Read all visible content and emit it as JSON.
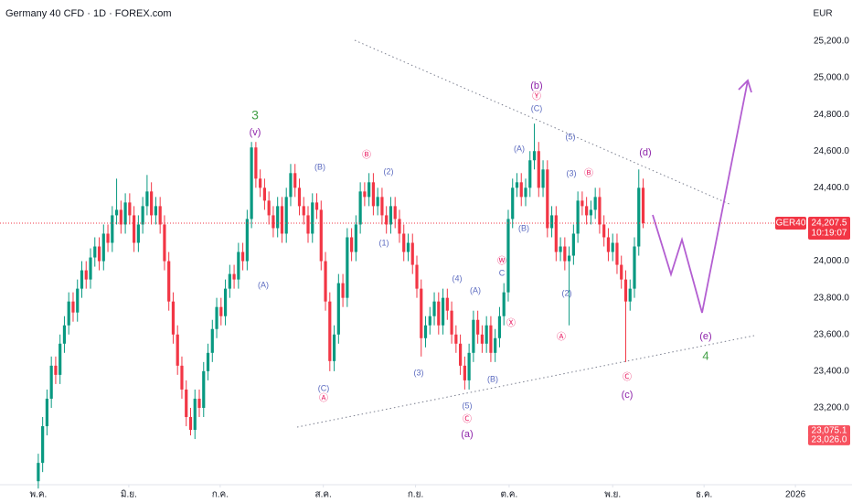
{
  "chart_data": {
    "type": "candlestick",
    "title": "Germany 40 CFD · 1D · FOREX.com",
    "currency": "EUR",
    "symbol": "GER40",
    "countdown": "10:19:07",
    "up_color": "#089981",
    "down_color": "#f23645",
    "xlim": [
      -8.8,
      187
    ],
    "ylim": [
      22781,
      25424
    ],
    "grid": false,
    "xticks": [
      {
        "value": 0,
        "label": "พ.ค."
      },
      {
        "value": 20.8,
        "label": "มิ.ย."
      },
      {
        "value": 41.8,
        "label": "ก.ค."
      },
      {
        "value": 65.5,
        "label": "ส.ค."
      },
      {
        "value": 86.7,
        "label": "ก.ย."
      },
      {
        "value": 108.2,
        "label": "ต.ค."
      },
      {
        "value": 132,
        "label": "พ.ย."
      },
      {
        "value": 153,
        "label": "ธ.ค."
      },
      {
        "value": 174,
        "label": "2026"
      }
    ],
    "yticks": [
      {
        "value": 23200,
        "label": "23,200.0"
      },
      {
        "value": 23400,
        "label": "23,400.0"
      },
      {
        "value": 23600,
        "label": "23,600.0"
      },
      {
        "value": 23800,
        "label": "23,800.0"
      },
      {
        "value": 24000,
        "label": "24,000.0"
      },
      {
        "value": 24200,
        "label": "24,200.0"
      },
      {
        "value": 24400,
        "label": "24,400.0"
      },
      {
        "value": 24600,
        "label": "24,600.0"
      },
      {
        "value": 24800,
        "label": "24,800.0"
      },
      {
        "value": 25000,
        "label": "25,000.0"
      },
      {
        "value": 25200,
        "label": "25,200.0"
      }
    ],
    "last_price": {
      "value": 24207.5,
      "label": "24,207.5"
    },
    "price_marks": [
      {
        "value": 23075.1,
        "label": "23,075.1"
      },
      {
        "value": 23026.0,
        "label": "23,026.0"
      }
    ],
    "open": [
      22800,
      22900,
      23100,
      23250,
      23430,
      23380,
      23550,
      23650,
      23780,
      23720,
      23850,
      23950,
      23900,
      24020,
      24080,
      24000,
      24150,
      24100,
      24250,
      24280,
      24200,
      24320,
      24250,
      24100,
      24200,
      24300,
      24380,
      24250,
      24300,
      24200,
      24000,
      23780,
      23600,
      23430,
      23300,
      23150,
      23080,
      23250,
      23200,
      23400,
      23500,
      23630,
      23750,
      23700,
      23850,
      23930,
      23900,
      24050,
      24000,
      24230,
      24620,
      24450,
      24400,
      24330,
      24250,
      24180,
      24300,
      24150,
      24350,
      24480,
      24400,
      24300,
      24250,
      24150,
      24320,
      24280,
      24000,
      23780,
      23455,
      23600,
      23880,
      23800,
      24130,
      24050,
      24200,
      24380,
      24350,
      24430,
      24300,
      24350,
      24250,
      24200,
      24300,
      24230,
      24150,
      24050,
      24100,
      23980,
      23850,
      23580,
      23650,
      23700,
      23780,
      23650,
      23800,
      23730,
      23600,
      23550,
      23430,
      23350,
      23500,
      23680,
      23600,
      23550,
      23650,
      23500,
      23580,
      23700,
      23830,
      24230,
      24400,
      24430,
      24350,
      24400,
      24550,
      24600,
      24400,
      24500,
      24180,
      24250,
      24050,
      24080,
      24000,
      24030,
      24150,
      24330,
      24300,
      24250,
      24280,
      24350,
      24200,
      24130,
      24050,
      24100,
      23980,
      23900,
      23780,
      23850,
      24080,
      24400
    ],
    "high": [
      22950,
      23150,
      23300,
      23480,
      23480,
      23600,
      23700,
      23830,
      23830,
      23900,
      24000,
      24000,
      24070,
      24130,
      24130,
      24200,
      24200,
      24300,
      24450,
      24330,
      24370,
      24370,
      24300,
      24250,
      24350,
      24470,
      24430,
      24350,
      24350,
      24250,
      24050,
      23830,
      23650,
      23480,
      23350,
      23200,
      23300,
      23300,
      23450,
      23550,
      23680,
      23800,
      23800,
      23900,
      23980,
      23980,
      24100,
      24100,
      24280,
      24650,
      24650,
      24500,
      24450,
      24380,
      24300,
      24350,
      24350,
      24400,
      24530,
      24530,
      24450,
      24350,
      24300,
      24370,
      24370,
      24330,
      24050,
      23830,
      23650,
      23930,
      23930,
      24180,
      24180,
      24250,
      24430,
      24430,
      24480,
      24480,
      24400,
      24400,
      24300,
      24350,
      24350,
      24280,
      24200,
      24150,
      24150,
      24030,
      23900,
      23700,
      23750,
      23830,
      23830,
      23850,
      23850,
      23780,
      23650,
      23600,
      23480,
      23550,
      23730,
      23730,
      23650,
      23700,
      23700,
      23630,
      23750,
      23880,
      24280,
      24450,
      24480,
      24480,
      24450,
      24600,
      24750,
      24650,
      24550,
      24550,
      24300,
      24300,
      24130,
      24130,
      24080,
      24200,
      24380,
      24380,
      24350,
      24330,
      24400,
      24400,
      24250,
      24180,
      24150,
      24150,
      24030,
      23950,
      23900,
      24130,
      24500,
      24450
    ],
    "low": [
      22760,
      22850,
      23050,
      23200,
      23330,
      23330,
      23500,
      23600,
      23670,
      23670,
      23800,
      23850,
      23850,
      23970,
      23950,
      23950,
      24050,
      24050,
      24200,
      24150,
      24150,
      24200,
      24050,
      24050,
      24150,
      24250,
      24200,
      24200,
      24150,
      23950,
      23730,
      23550,
      23380,
      23250,
      23100,
      23050,
      23030,
      23150,
      23150,
      23350,
      23450,
      23580,
      23650,
      23650,
      23800,
      23850,
      23850,
      23950,
      23950,
      24180,
      24400,
      24350,
      24280,
      24200,
      24130,
      24130,
      24100,
      24100,
      24300,
      24350,
      24250,
      24200,
      24100,
      24100,
      24230,
      23950,
      23730,
      23400,
      23400,
      23550,
      23750,
      23750,
      24000,
      24000,
      24150,
      24300,
      24300,
      24250,
      24250,
      24200,
      24150,
      24150,
      24180,
      24100,
      24000,
      24000,
      23930,
      23800,
      23480,
      23530,
      23600,
      23650,
      23600,
      23600,
      23680,
      23550,
      23500,
      23380,
      23300,
      23300,
      23450,
      23550,
      23500,
      23500,
      23450,
      23450,
      23530,
      23650,
      23780,
      24180,
      24350,
      24300,
      24300,
      24350,
      24500,
      24350,
      24350,
      24130,
      24130,
      24000,
      24000,
      23950,
      23650,
      23980,
      24100,
      24250,
      24200,
      24200,
      24230,
      24150,
      24080,
      24000,
      24000,
      23930,
      23850,
      23450,
      23730,
      23800,
      24030,
      24180
    ],
    "close": [
      22900,
      23100,
      23250,
      23430,
      23380,
      23550,
      23650,
      23780,
      23720,
      23850,
      23950,
      23900,
      24020,
      24080,
      24000,
      24150,
      24100,
      24250,
      24280,
      24200,
      24320,
      24250,
      24100,
      24200,
      24300,
      24380,
      24250,
      24300,
      24200,
      24000,
      23780,
      23600,
      23430,
      23300,
      23150,
      23080,
      23250,
      23200,
      23400,
      23500,
      23630,
      23750,
      23700,
      23850,
      23930,
      23900,
      24050,
      24000,
      24230,
      24620,
      24450,
      24400,
      24330,
      24250,
      24180,
      24300,
      24150,
      24350,
      24480,
      24400,
      24300,
      24250,
      24150,
      24320,
      24280,
      24000,
      23780,
      23455,
      23600,
      23880,
      23800,
      24130,
      24050,
      24200,
      24380,
      24350,
      24430,
      24300,
      24350,
      24250,
      24200,
      24300,
      24230,
      24150,
      24050,
      24100,
      23980,
      23850,
      23580,
      23650,
      23700,
      23780,
      23650,
      23800,
      23730,
      23600,
      23550,
      23430,
      23350,
      23500,
      23680,
      23600,
      23550,
      23650,
      23500,
      23580,
      23700,
      23830,
      24230,
      24400,
      24430,
      24350,
      24400,
      24550,
      24600,
      24400,
      24500,
      24180,
      24250,
      24050,
      24080,
      24000,
      24030,
      24150,
      24330,
      24300,
      24250,
      24280,
      24350,
      24200,
      24130,
      24050,
      24100,
      23980,
      23900,
      23780,
      23850,
      24080,
      24400,
      24207.5
    ],
    "annotations": [
      "3",
      "(v)",
      "(A)",
      "(B)",
      "(C)",
      "Ⓐ",
      "Ⓑ",
      "(2)",
      "(1)",
      "(3)",
      "(4)",
      "(A)",
      "(5)",
      "Ⓒ",
      "(a)",
      "(B)",
      "Ⓦ",
      "C",
      "Ⓧ",
      "(b)",
      "Ⓨ",
      "(C)",
      "(A)",
      "(5)",
      "(B)",
      "(3)",
      "Ⓑ",
      "(2)",
      "Ⓐ",
      "(d)",
      "Ⓒ",
      "(c)",
      "(e)",
      "4"
    ]
  }
}
